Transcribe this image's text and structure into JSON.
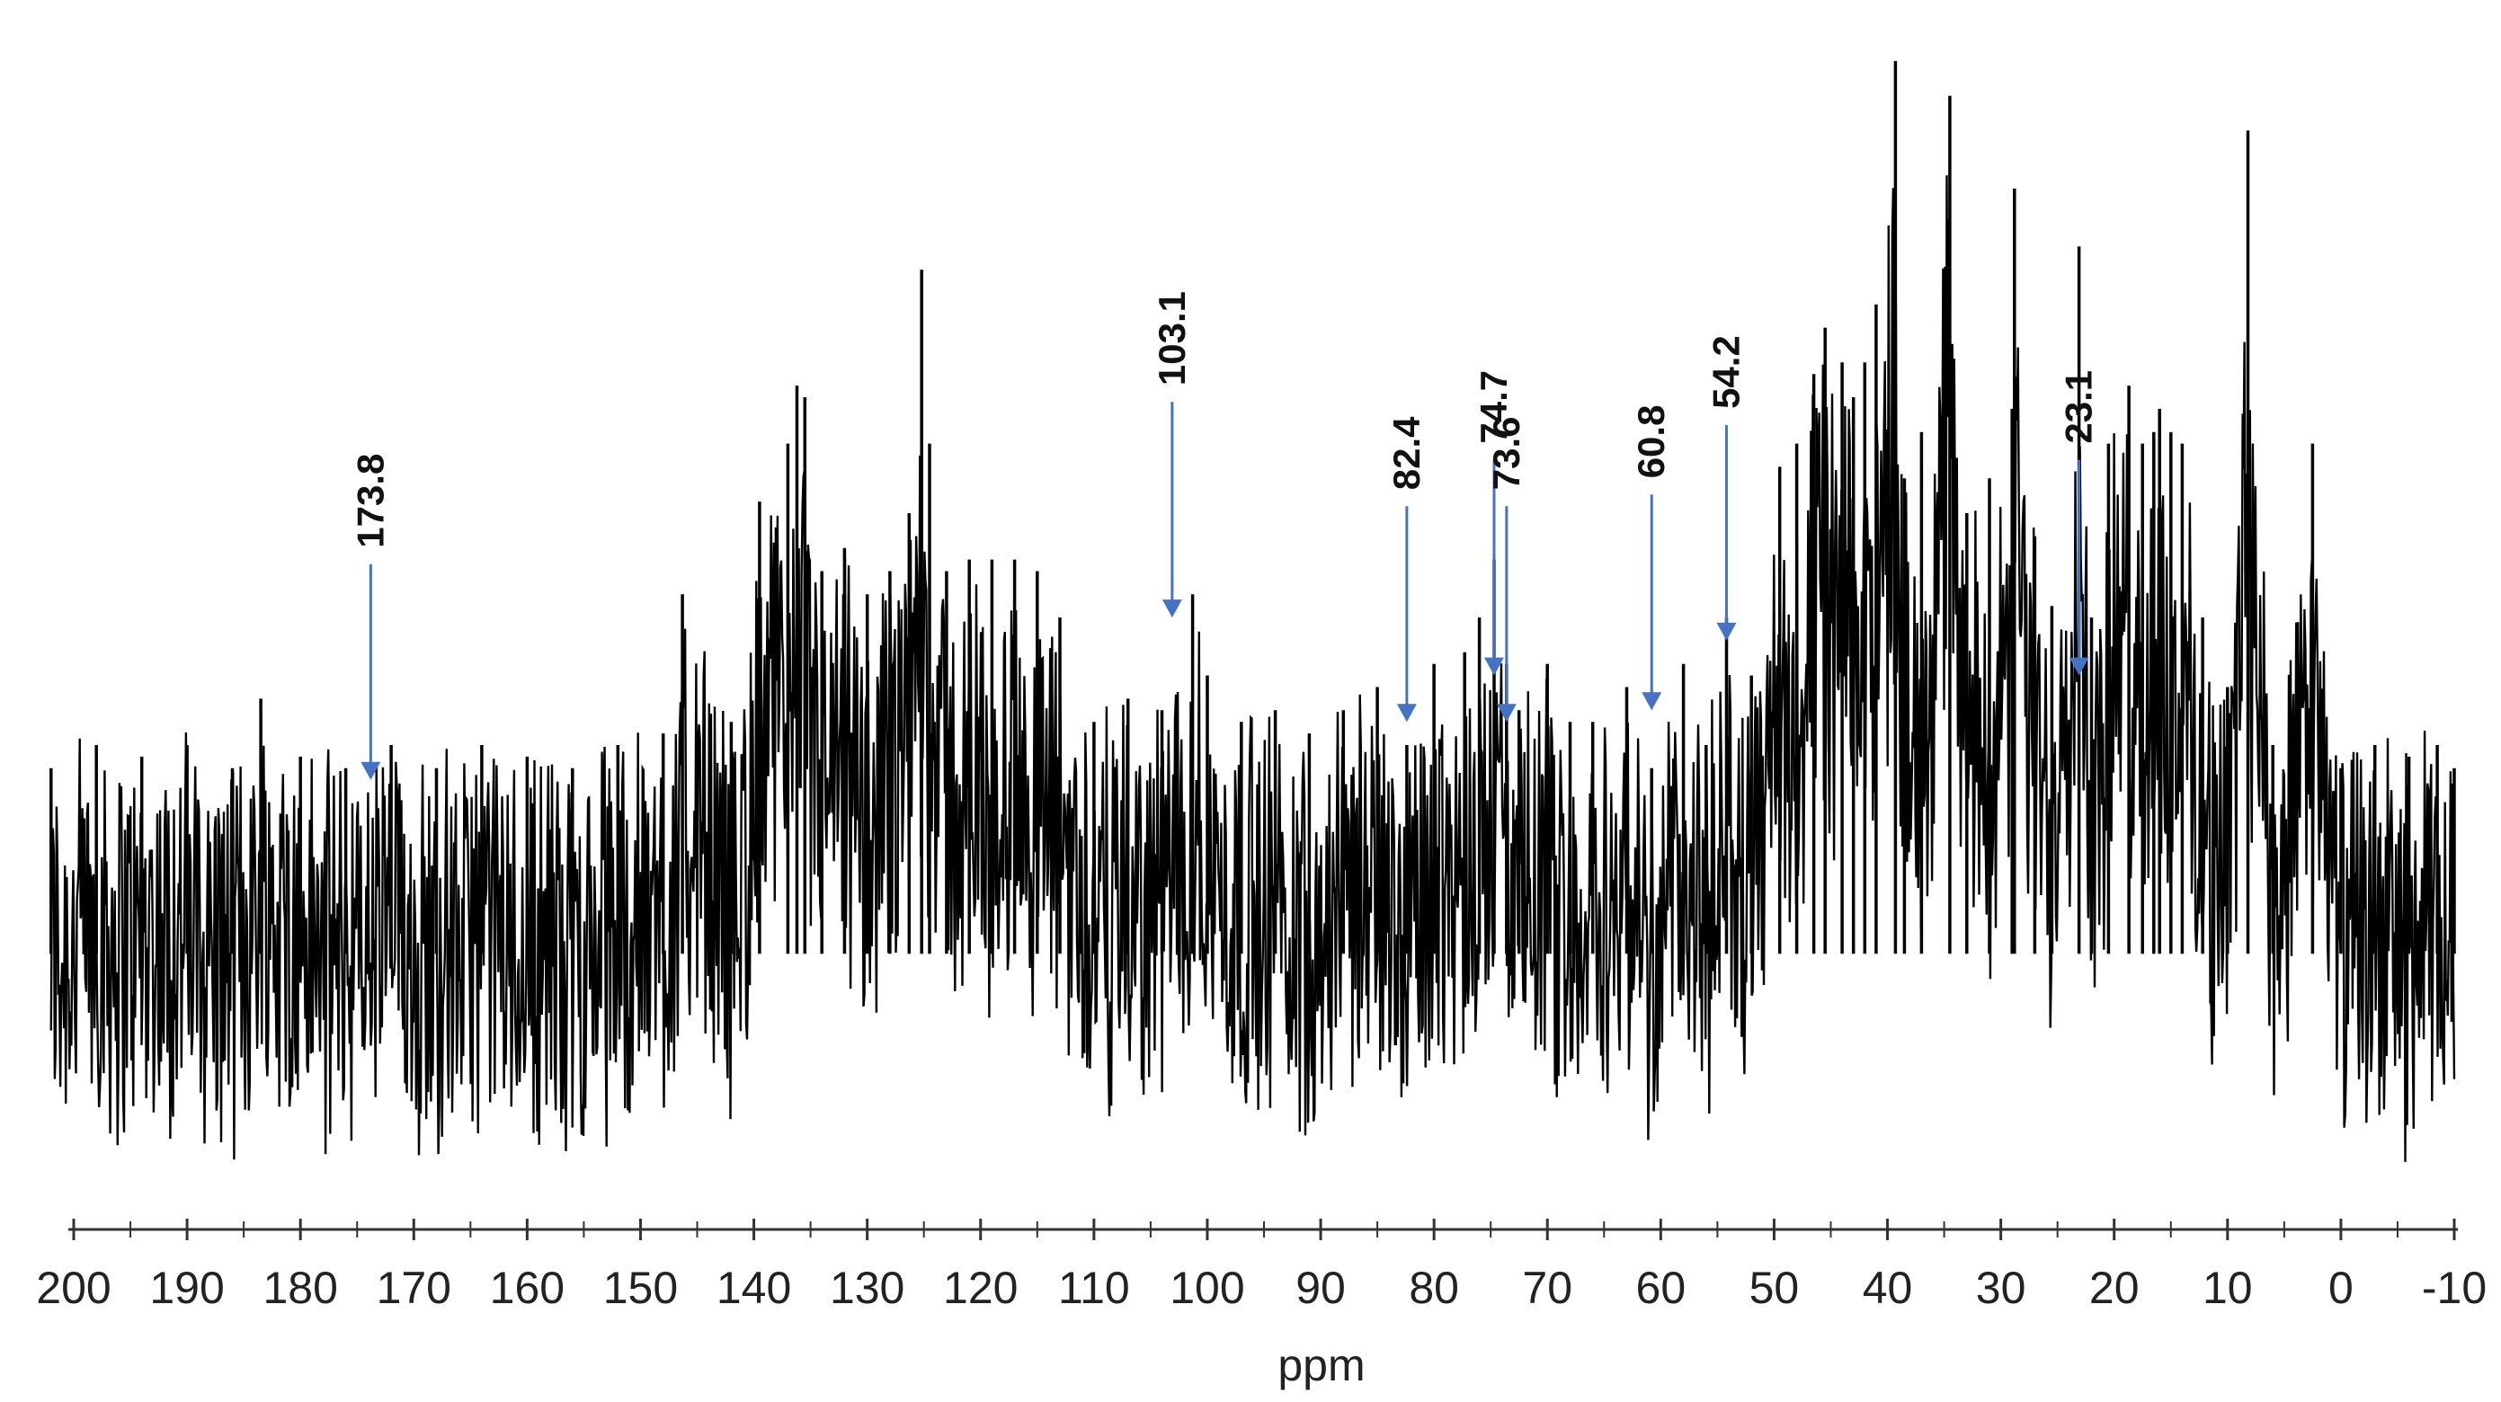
{
  "chart_data": {
    "type": "line",
    "title": "",
    "xlabel": "ppm",
    "ylabel": "",
    "x_reversed": true,
    "xlim": [
      200,
      -10
    ],
    "x_ticks": [
      200,
      190,
      180,
      170,
      160,
      150,
      140,
      130,
      120,
      110,
      100,
      90,
      80,
      70,
      60,
      50,
      40,
      30,
      20,
      10,
      0,
      -10
    ],
    "x_tick_labels": [
      "200",
      "190",
      "180",
      "170",
      "160",
      "150",
      "140",
      "130",
      "120",
      "110",
      "100",
      "90",
      "80",
      "70",
      "60",
      "50",
      "40",
      "30",
      "20",
      "10",
      "0",
      "-10"
    ],
    "grid": false,
    "legend": "none",
    "colors": {
      "spectrum": "#000000",
      "annotation": "#4472c4"
    },
    "series": [
      {
        "x": [
          202,
          198,
          194,
          190,
          186,
          183.5,
          180,
          176,
          172,
          168,
          164,
          160,
          156,
          152,
          148,
          146.3,
          142,
          139.5,
          137,
          136.2,
          135.5,
          134,
          132,
          130,
          128,
          126.3,
          125.2,
          124.5,
          123,
          121,
          119,
          117,
          115,
          113,
          110,
          107,
          104,
          101.3,
          100,
          97,
          94,
          91,
          88,
          85,
          82.4,
          80,
          77.3,
          76,
          74.7,
          73.6,
          72.5,
          70,
          68,
          66,
          63,
          60.8,
          58,
          56,
          54.2,
          52,
          49.5,
          48,
          46.5,
          45.5,
          44,
          43,
          42,
          41,
          39.3,
          38.5,
          37,
          34.5,
          33,
          31,
          29,
          28.8,
          27,
          25.5,
          23.1,
          22,
          20.5,
          18.7,
          17.5,
          16.5,
          16,
          15,
          14,
          12.2,
          10,
          8.2,
          6,
          2.5,
          0,
          -3,
          -6,
          -8.5,
          -10
        ],
        "y": [
          0.38,
          0.4,
          0.39,
          0.4,
          0.38,
          0.44,
          0.39,
          0.38,
          0.4,
          0.38,
          0.4,
          0.39,
          0.38,
          0.4,
          0.41,
          0.53,
          0.42,
          0.61,
          0.66,
          0.71,
          0.7,
          0.55,
          0.57,
          0.53,
          0.55,
          0.6,
          0.81,
          0.66,
          0.55,
          0.56,
          0.56,
          0.56,
          0.55,
          0.51,
          0.42,
          0.44,
          0.43,
          0.53,
          0.46,
          0.42,
          0.43,
          0.41,
          0.43,
          0.45,
          0.4,
          0.47,
          0.48,
          0.51,
          0.56,
          0.47,
          0.43,
          0.47,
          0.42,
          0.42,
          0.45,
          0.38,
          0.47,
          0.4,
          0.51,
          0.46,
          0.64,
          0.66,
          0.72,
          0.76,
          0.73,
          0.7,
          0.73,
          0.78,
          0.99,
          0.63,
          0.67,
          0.96,
          0.6,
          0.63,
          0.69,
          0.88,
          0.58,
          0.52,
          0.83,
          0.51,
          0.66,
          0.71,
          0.66,
          0.67,
          0.69,
          0.67,
          0.66,
          0.51,
          0.45,
          0.93,
          0.4,
          0.66,
          0.38,
          0.4,
          0.39,
          0.4,
          0.38
        ]
      }
    ],
    "annotations": [
      {
        "label": "173.8",
        "x": 173.8,
        "y": 0.37
      },
      {
        "label": "103.1",
        "x": 103.1,
        "y": 0.51
      },
      {
        "label": "82.4",
        "x": 82.4,
        "y": 0.42
      },
      {
        "label": "74.7",
        "x": 74.7,
        "y": 0.46
      },
      {
        "label": "73.6",
        "x": 73.6,
        "y": 0.42
      },
      {
        "label": "60.8",
        "x": 60.8,
        "y": 0.43
      },
      {
        "label": "54.2",
        "x": 54.2,
        "y": 0.49
      },
      {
        "label": "23.1",
        "x": 23.1,
        "y": 0.46
      }
    ]
  }
}
